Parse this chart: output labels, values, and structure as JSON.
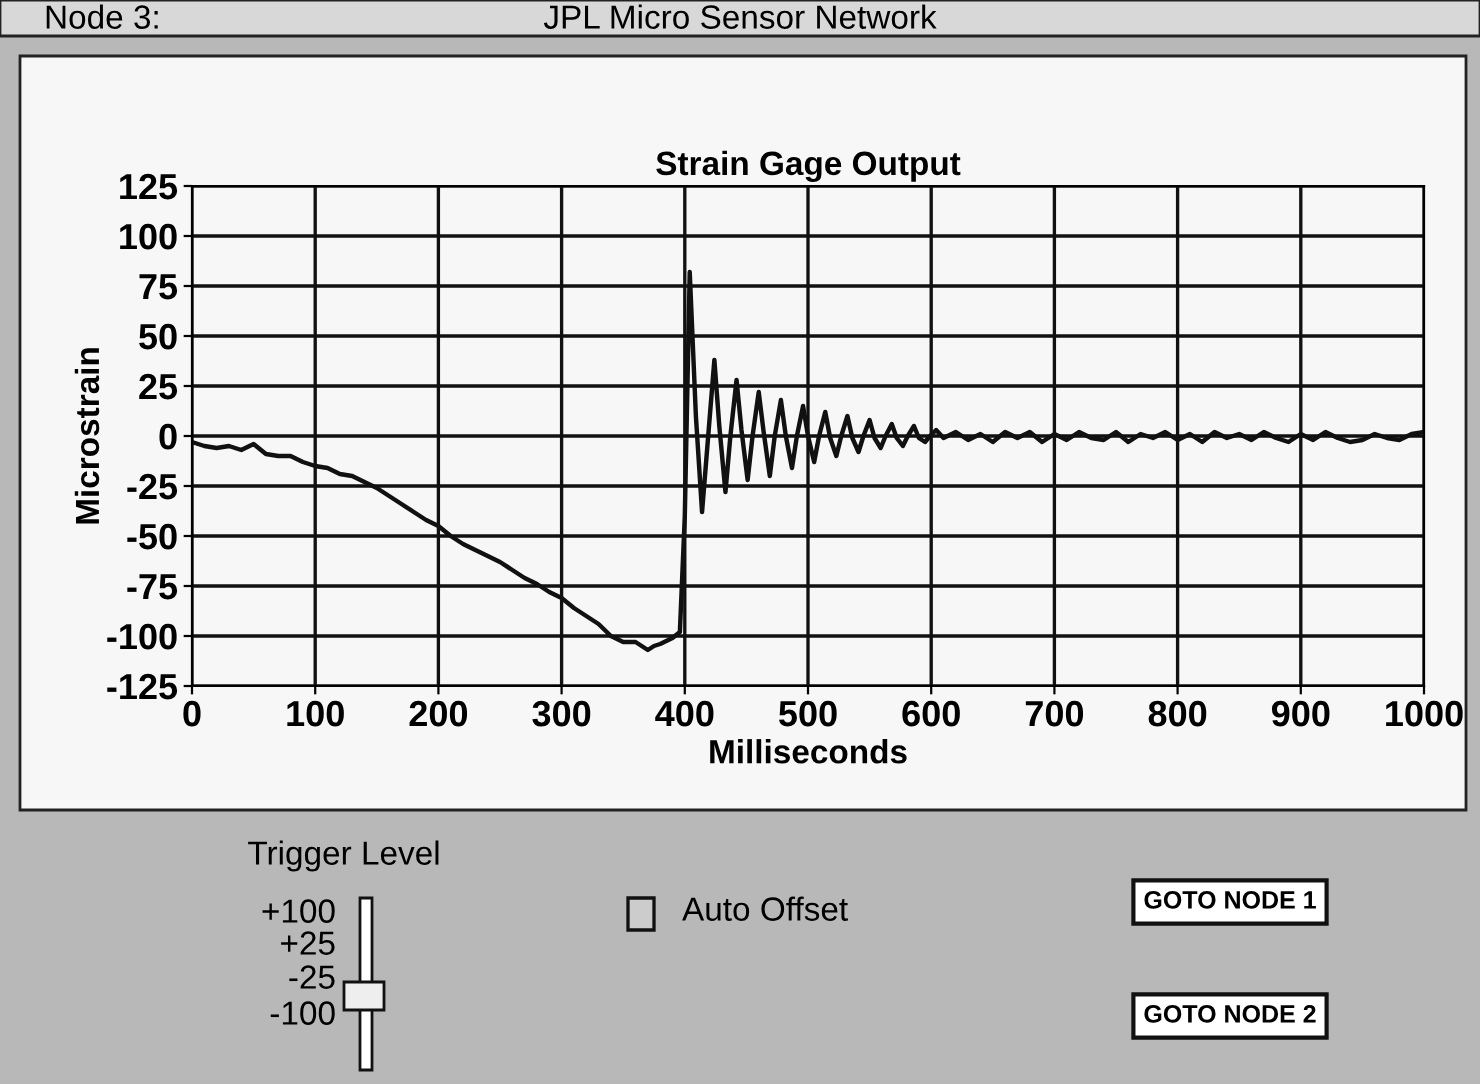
{
  "chart_data": {
    "type": "line",
    "title": "Strain Gage Output",
    "xlabel": "Milliseconds",
    "ylabel": "Microstrain",
    "x": [
      0,
      10,
      20,
      30,
      40,
      50,
      60,
      70,
      80,
      90,
      100,
      110,
      120,
      130,
      140,
      150,
      160,
      170,
      180,
      190,
      200,
      210,
      220,
      230,
      240,
      250,
      260,
      270,
      280,
      290,
      300,
      310,
      320,
      330,
      340,
      350,
      360,
      370,
      375,
      380,
      390,
      396,
      400,
      404,
      409,
      414,
      419,
      424,
      428,
      433,
      437,
      442,
      446,
      451,
      455,
      460,
      464,
      469,
      473,
      478,
      482,
      487,
      491,
      496,
      500,
      505,
      509,
      514,
      518,
      523,
      527,
      532,
      536,
      541,
      545,
      550,
      554,
      559,
      563,
      568,
      572,
      577,
      581,
      586,
      590,
      595,
      599,
      604,
      610,
      620,
      630,
      640,
      650,
      660,
      670,
      680,
      690,
      700,
      710,
      720,
      730,
      740,
      750,
      760,
      770,
      780,
      790,
      800,
      810,
      820,
      830,
      840,
      850,
      860,
      870,
      880,
      890,
      900,
      910,
      920,
      930,
      940,
      950,
      960,
      970,
      980,
      990,
      1000
    ],
    "series": [
      {
        "color": "#111111",
        "values": [
          -3,
          -5,
          -6,
          -5,
          -7,
          -4,
          -9,
          -10,
          -10,
          -13,
          -15,
          -16,
          -19,
          -20,
          -23,
          -26,
          -30,
          -34,
          -38,
          -42,
          -45,
          -50,
          -54,
          -57,
          -60,
          -63,
          -67,
          -71,
          -74,
          -78,
          -81,
          -86,
          -90,
          -94,
          -100,
          -103,
          -103,
          -107,
          -105,
          -104,
          -101,
          -98,
          -40,
          82,
          10,
          -38,
          0,
          38,
          5,
          -28,
          0,
          28,
          3,
          -22,
          0,
          22,
          2,
          -20,
          0,
          18,
          0,
          -16,
          0,
          15,
          0,
          -13,
          0,
          12,
          -1,
          -10,
          0,
          10,
          -1,
          -8,
          0,
          8,
          -1,
          -6,
          0,
          6,
          -1,
          -5,
          0,
          5,
          -1,
          -3,
          0,
          3,
          -1,
          2,
          -2,
          1,
          -3,
          2,
          -1,
          2,
          -3,
          1,
          -2,
          2,
          -1,
          -2,
          2,
          -3,
          1,
          -1,
          2,
          -2,
          1,
          -3,
          2,
          -1,
          1,
          -2,
          2,
          -1,
          -3,
          1,
          -2,
          2,
          -1,
          -3,
          -2,
          1,
          -1,
          -2,
          1,
          2
        ]
      }
    ],
    "xlim": [
      0,
      1000
    ],
    "xticks": [
      0,
      100,
      200,
      300,
      400,
      500,
      600,
      700,
      800,
      900,
      1000
    ],
    "ylim": [
      -125,
      125
    ],
    "yticks": [
      125,
      100,
      75,
      50,
      25,
      0,
      -25,
      -50,
      -75,
      -100,
      -125
    ],
    "grid": true,
    "marker": "none",
    "line_style": "solid",
    "annotations": [
      "Node 3:",
      "JPL Micro Sensor Network",
      "Trigger Level",
      "+100",
      "+25",
      "-25",
      "-100",
      "Auto Offset",
      "GOTO NODE 1",
      "GOTO NODE 2"
    ]
  }
}
